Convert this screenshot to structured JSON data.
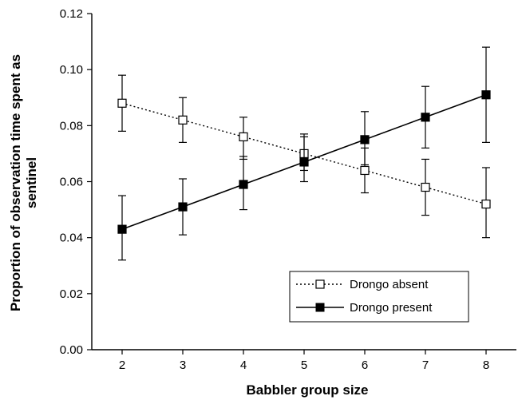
{
  "chart_data": {
    "type": "line",
    "xlabel": "Babbler group size",
    "ylabel_lines": [
      "Proportion of observation time spent as",
      "sentinel"
    ],
    "x": [
      2,
      3,
      4,
      5,
      6,
      7,
      8
    ],
    "xlim": [
      1.5,
      8.5
    ],
    "ylim": [
      0,
      0.12
    ],
    "x_ticks": [
      "2",
      "3",
      "4",
      "5",
      "6",
      "7",
      "8"
    ],
    "y_ticks": [
      "0.00",
      "0.02",
      "0.04",
      "0.06",
      "0.08",
      "0.10",
      "0.12"
    ],
    "grid": false,
    "legend_position": "bottom-right",
    "series": [
      {
        "name": "Drongo absent",
        "marker": "open-square",
        "line_style": "dotted",
        "color": "#000000",
        "values": [
          0.088,
          0.082,
          0.076,
          0.07,
          0.064,
          0.058,
          0.052
        ],
        "err_low": [
          0.078,
          0.074,
          0.068,
          0.064,
          0.056,
          0.048,
          0.04
        ],
        "err_high": [
          0.098,
          0.09,
          0.083,
          0.077,
          0.072,
          0.068,
          0.065
        ]
      },
      {
        "name": "Drongo present",
        "marker": "filled-square",
        "line_style": "solid",
        "color": "#000000",
        "values": [
          0.043,
          0.051,
          0.059,
          0.067,
          0.075,
          0.083,
          0.091
        ],
        "err_low": [
          0.032,
          0.041,
          0.05,
          0.06,
          0.066,
          0.072,
          0.074
        ],
        "err_high": [
          0.055,
          0.061,
          0.069,
          0.076,
          0.085,
          0.094,
          0.108
        ]
      }
    ]
  }
}
